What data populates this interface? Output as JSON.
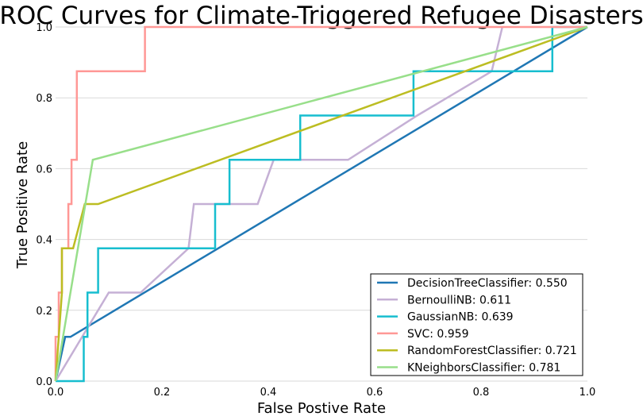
{
  "chart_data": {
    "type": "line",
    "title": "ROC Curves for Climate-Triggered Refugee Disasters",
    "xlabel": "False Postive Rate",
    "ylabel": "True Positive Rate",
    "xlim": [
      0,
      1
    ],
    "ylim": [
      0,
      1
    ],
    "xticks": [
      "0.0",
      "0.2",
      "0.4",
      "0.6",
      "0.8",
      "1.0"
    ],
    "yticks": [
      "0.0",
      "0.2",
      "0.4",
      "0.6",
      "0.8",
      "1.0"
    ],
    "grid": "horizontal",
    "legend_position": "bottom-right",
    "series": [
      {
        "name": "DecisionTreeClassifier: 0.550",
        "color": "#1f77b4",
        "x": [
          0,
          0.018,
          0.028,
          1
        ],
        "y": [
          0,
          0.125,
          0.125,
          1
        ]
      },
      {
        "name": "BernoulliNB: 0.611",
        "color": "#c5b0d5",
        "x": [
          0,
          0.1,
          0.16,
          0.25,
          0.26,
          0.38,
          0.41,
          0.55,
          0.68,
          0.82,
          0.84
        ],
        "y": [
          0,
          0.25,
          0.25,
          0.375,
          0.5,
          0.5,
          0.625,
          0.625,
          0.75,
          0.875,
          1.0
        ]
      },
      {
        "name": "GaussianNB: 0.639",
        "color": "#17becf",
        "x": [
          0,
          0.053,
          0.053,
          0.06,
          0.06,
          0.08,
          0.08,
          0.3,
          0.3,
          0.327,
          0.327,
          0.46,
          0.46,
          0.673,
          0.673,
          0.934,
          0.934,
          1.0
        ],
        "y": [
          0,
          0,
          0.125,
          0.125,
          0.25,
          0.25,
          0.375,
          0.375,
          0.5,
          0.5,
          0.625,
          0.625,
          0.75,
          0.75,
          0.875,
          0.875,
          1.0,
          1.0
        ]
      },
      {
        "name": "SVC: 0.959",
        "color": "#ff9896",
        "x": [
          0,
          0,
          0.006,
          0.006,
          0.012,
          0.012,
          0.018,
          0.018,
          0.024,
          0.024,
          0.03,
          0.03,
          0.035,
          0.035,
          0.04,
          0.04,
          0.168,
          0.168,
          1.0
        ],
        "y": [
          0,
          0.125,
          0.125,
          0.25,
          0.25,
          0.375,
          0.375,
          0.375,
          0.375,
          0.5,
          0.5,
          0.625,
          0.625,
          0.625,
          0.625,
          0.875,
          0.875,
          1.0,
          1.0
        ]
      },
      {
        "name": "RandomForestClassifier: 0.721",
        "color": "#bcbd22",
        "x": [
          0,
          0.012,
          0.012,
          0.033,
          0.055,
          0.08,
          1.0
        ],
        "y": [
          0,
          0.25,
          0.375,
          0.375,
          0.5,
          0.5,
          1.0
        ]
      },
      {
        "name": "KNeighborsClassifier: 0.781",
        "color": "#98df8a",
        "x": [
          0,
          0.07,
          1.0
        ],
        "y": [
          0,
          0.625,
          1.0
        ]
      }
    ]
  }
}
